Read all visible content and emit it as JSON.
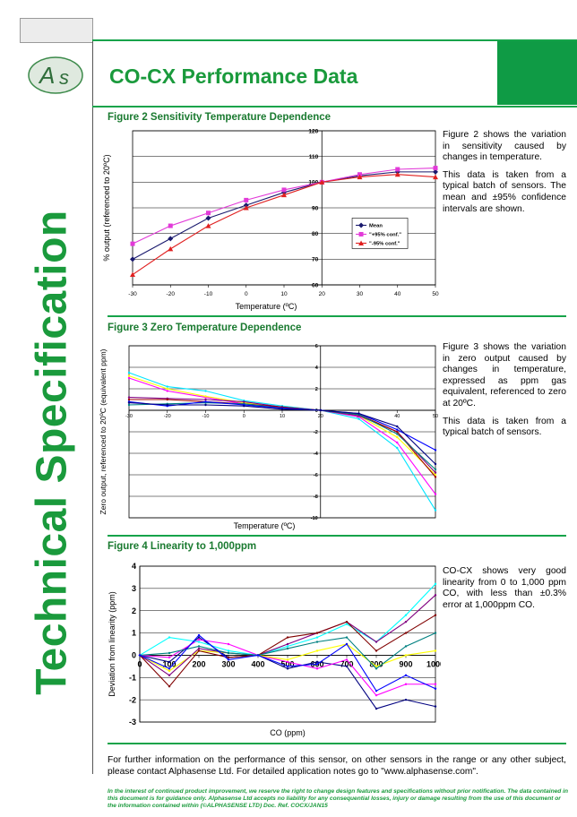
{
  "brand": {
    "logo_text": "AS",
    "accent": "#1a9a3c",
    "green_box": "#0f9b45"
  },
  "page": {
    "title": "CO-CX  Performance Data",
    "side_title": "Technical Specification"
  },
  "figures": {
    "fig2": {
      "title": "Figure 2 Sensitivity Temperature Dependence",
      "text": [
        "Figure 2 shows the variation in sensitivity caused by changes in temperature.",
        "This data is taken from a typical batch of sensors.  The mean and ±95% confidence intervals are shown."
      ]
    },
    "fig3": {
      "title": "Figure 3 Zero Temperature Dependence",
      "text": [
        "Figure 3 shows the variation in zero output caused by changes in temperature, expressed as ppm gas equivalent, referenced to zero at 20ºC.",
        "This data is taken from a typical batch of sensors."
      ]
    },
    "fig4": {
      "title": "Figure 4  Linearity to 1,000ppm",
      "text": [
        "CO-CX shows very good linearity from 0 to 1,000 ppm CO, with less than ±0.3% error at 1,000ppm CO."
      ]
    }
  },
  "footer": {
    "more_info": "For further information on the performance of this sensor, on other sensors in the range or any other subject, please contact Alphasense Ltd. For detailed application notes go to \"www.alphasense.com\".",
    "disclaimer": "In the interest of continued product improvement, we reserve the right to change design features and specifications without prior notification. The data contained in this document is for guidance only. Alphasense Ltd accepts no liability for any consequential losses, injury or damage resulting from the use of this document or the information contained within (©ALPHASENSE LTD) Doc. Ref. COCX/JAN15"
  },
  "chart_data": [
    {
      "type": "line",
      "title": "",
      "xlabel": "Temperature (ºC)",
      "ylabel": "% output (referenced to 20ºC)",
      "x": [
        -30,
        -20,
        -10,
        0,
        10,
        20,
        30,
        40,
        50
      ],
      "xlim": [
        -30,
        50
      ],
      "ylim": [
        60,
        120
      ],
      "yticks": [
        60,
        70,
        80,
        90,
        100,
        110,
        120
      ],
      "grid": "horizontal",
      "legend_position": "right",
      "series": [
        {
          "name": "Mean",
          "color": "#1a1a6e",
          "marker": "diamond",
          "values": [
            70,
            78,
            86,
            91,
            96,
            100,
            102.5,
            104,
            104
          ]
        },
        {
          "name": "\"+95% conf.\"",
          "color": "#e23ad8",
          "marker": "square",
          "values": [
            76,
            83,
            88,
            93,
            97,
            100,
            103,
            105,
            105.5
          ]
        },
        {
          "name": "\"-95% conf.\"",
          "color": "#e02020",
          "marker": "triangle",
          "values": [
            64,
            74,
            83,
            90,
            95,
            100,
            102,
            103,
            102
          ]
        }
      ]
    },
    {
      "type": "line",
      "title": "",
      "xlabel": "Temperature (ºC)",
      "ylabel": "Zero output, referenced to 20ºC (equivalent ppm)",
      "x": [
        -30,
        -20,
        -10,
        0,
        10,
        20,
        30,
        40,
        50
      ],
      "xlim": [
        -30,
        50
      ],
      "ylim": [
        -10,
        6
      ],
      "yticks": [
        -10,
        -8,
        -6,
        -4,
        -2,
        0,
        2,
        4,
        6
      ],
      "grid": "horizontal",
      "legend_position": "none",
      "series": [
        {
          "color": "#00e5ff",
          "values": [
            3.5,
            2.2,
            1.8,
            0.9,
            0.4,
            0,
            -0.8,
            -3.5,
            -9.3
          ]
        },
        {
          "color": "#ff00ff",
          "values": [
            3.0,
            1.8,
            1.2,
            0.6,
            0.3,
            0,
            -0.6,
            -3.0,
            -7.8
          ]
        },
        {
          "color": "#ffff00",
          "values": [
            3.2,
            2.0,
            1.3,
            0.7,
            0.2,
            0,
            -0.5,
            -2.5,
            -6.0
          ]
        },
        {
          "color": "#800080",
          "values": [
            1.2,
            1.1,
            1.0,
            0.8,
            0.3,
            0,
            -0.5,
            -2.0,
            -5.8
          ]
        },
        {
          "color": "#a00000",
          "values": [
            1.0,
            1.0,
            0.8,
            0.6,
            0.3,
            0,
            -0.4,
            -2.0,
            -6.2
          ]
        },
        {
          "color": "#008080",
          "values": [
            0.5,
            0.6,
            0.7,
            0.6,
            0.2,
            0,
            -0.4,
            -2.2,
            -5.5
          ]
        },
        {
          "color": "#0000ff",
          "values": [
            0.8,
            0.4,
            0.8,
            0.5,
            0.2,
            0,
            -0.3,
            -1.8,
            -3.7
          ]
        },
        {
          "color": "#000080",
          "values": [
            0.7,
            0.5,
            0.5,
            0.4,
            0.1,
            0,
            -0.3,
            -1.5,
            -5.0
          ]
        }
      ]
    },
    {
      "type": "line",
      "title": "",
      "xlabel": "CO (ppm)",
      "ylabel": "Deviation from linearity (ppm)",
      "x": [
        0,
        100,
        200,
        300,
        400,
        500,
        600,
        700,
        800,
        900,
        1000
      ],
      "xlim": [
        0,
        1000
      ],
      "ylim": [
        -3,
        4
      ],
      "yticks": [
        -3,
        -2,
        -1,
        0,
        1,
        2,
        3,
        4
      ],
      "grid": "horizontal",
      "legend_position": "none",
      "series": [
        {
          "color": "#000080",
          "values": [
            0,
            -0.3,
            0.8,
            -0.1,
            0,
            -0.6,
            -0.3,
            -0.5,
            -2.4,
            -2.0,
            -2.3
          ]
        },
        {
          "color": "#ff00ff",
          "values": [
            0,
            -0.1,
            0.7,
            0.5,
            0,
            -0.3,
            -0.6,
            -0.2,
            -1.8,
            -1.3,
            -1.3
          ]
        },
        {
          "color": "#ffff00",
          "values": [
            0,
            -0.7,
            0.2,
            0.1,
            0,
            -0.2,
            0.2,
            0.5,
            -0.5,
            0.0,
            0.2
          ]
        },
        {
          "color": "#00ffff",
          "values": [
            0,
            0.8,
            0.6,
            0.2,
            0,
            0.4,
            0.8,
            1.4,
            0.6,
            1.8,
            3.2
          ]
        },
        {
          "color": "#800080",
          "values": [
            0,
            -0.9,
            0.3,
            0.1,
            0,
            0.5,
            1.0,
            1.5,
            0.6,
            1.5,
            2.7
          ]
        },
        {
          "color": "#800000",
          "values": [
            0,
            -1.4,
            0.2,
            -0.1,
            0,
            0.8,
            1.0,
            1.5,
            0.2,
            1.0,
            1.8
          ]
        },
        {
          "color": "#008080",
          "values": [
            0,
            0.1,
            0.4,
            0.1,
            0,
            0.3,
            0.6,
            0.8,
            -0.6,
            0.4,
            1.0
          ]
        },
        {
          "color": "#0000ff",
          "values": [
            0,
            -0.6,
            0.9,
            -0.2,
            0,
            -0.5,
            -0.4,
            0.5,
            -1.6,
            -0.9,
            -1.5
          ]
        }
      ]
    }
  ]
}
